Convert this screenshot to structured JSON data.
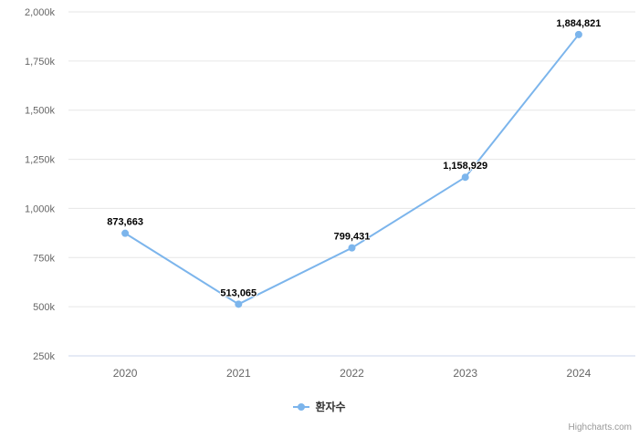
{
  "chart_data": {
    "type": "line",
    "categories": [
      "2020",
      "2021",
      "2022",
      "2023",
      "2024"
    ],
    "series": [
      {
        "name": "환자수",
        "values": [
          873663,
          513065,
          799431,
          1158929,
          1884821
        ]
      }
    ],
    "data_labels": [
      "873,663",
      "513,065",
      "799,431",
      "1,158,929",
      "1,884,821"
    ],
    "title": "",
    "xlabel": "",
    "ylabel": "",
    "ylim": [
      250000,
      2000000
    ],
    "y_tick_interval": 250000,
    "y_tick_labels": [
      "250k",
      "500k",
      "750k",
      "1,000k",
      "1,250k",
      "1,500k",
      "1,750k",
      "2,000k"
    ],
    "grid": true,
    "legend_position": "bottom-center",
    "colors": {
      "series": "#7cb5ec",
      "grid_line": "#e6e6e6",
      "axis_line": "#ccd6eb",
      "axis_label": "#666666",
      "data_label": "#000000",
      "legend_text": "#333333",
      "credits_text": "#999999",
      "background": "#ffffff"
    }
  },
  "credits": "Highcharts.com"
}
